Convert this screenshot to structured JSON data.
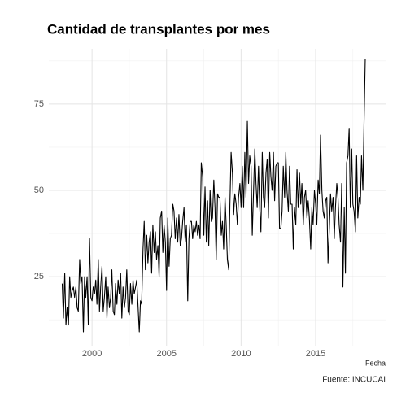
{
  "chart_data": {
    "type": "line",
    "title": "Cantidad de transplantes por mes",
    "xlabel": "Fecha",
    "caption": "Fuente: INCUCAI",
    "color": "#000000",
    "grid": true,
    "xlim": [
      1997.1,
      2019.75
    ],
    "xticks": [
      2000,
      2005,
      2010,
      2015
    ],
    "ylim": [
      5,
      91
    ],
    "yticks": [
      25,
      50,
      75
    ],
    "x": [
      1998,
      1998.08,
      1998.17,
      1998.25,
      1998.33,
      1998.42,
      1998.5,
      1998.58,
      1998.67,
      1998.75,
      1998.83,
      1998.92,
      1999,
      1999.08,
      1999.17,
      1999.25,
      1999.33,
      1999.42,
      1999.5,
      1999.58,
      1999.67,
      1999.75,
      1999.83,
      1999.92,
      2000,
      2000.08,
      2000.17,
      2000.25,
      2000.33,
      2000.42,
      2000.5,
      2000.58,
      2000.67,
      2000.75,
      2000.83,
      2000.92,
      2001,
      2001.08,
      2001.17,
      2001.25,
      2001.33,
      2001.42,
      2001.5,
      2001.58,
      2001.67,
      2001.75,
      2001.83,
      2001.92,
      2002,
      2002.08,
      2002.17,
      2002.25,
      2002.33,
      2002.42,
      2002.5,
      2002.58,
      2002.67,
      2002.75,
      2002.83,
      2002.92,
      2003,
      2003.08,
      2003.17,
      2003.25,
      2003.33,
      2003.42,
      2003.5,
      2003.58,
      2003.67,
      2003.75,
      2003.83,
      2003.92,
      2004,
      2004.08,
      2004.17,
      2004.25,
      2004.33,
      2004.42,
      2004.5,
      2004.58,
      2004.67,
      2004.75,
      2004.83,
      2004.92,
      2005,
      2005.08,
      2005.17,
      2005.25,
      2005.33,
      2005.42,
      2005.5,
      2005.58,
      2005.67,
      2005.75,
      2005.83,
      2005.92,
      2006,
      2006.08,
      2006.17,
      2006.25,
      2006.33,
      2006.42,
      2006.5,
      2006.58,
      2006.67,
      2006.75,
      2006.83,
      2006.92,
      2007,
      2007.08,
      2007.17,
      2007.25,
      2007.33,
      2007.42,
      2007.5,
      2007.58,
      2007.67,
      2007.75,
      2007.83,
      2007.92,
      2008,
      2008.08,
      2008.17,
      2008.25,
      2008.33,
      2008.42,
      2008.5,
      2008.58,
      2008.67,
      2008.75,
      2008.83,
      2008.92,
      2009,
      2009.08,
      2009.17,
      2009.25,
      2009.33,
      2009.42,
      2009.5,
      2009.58,
      2009.67,
      2009.75,
      2009.83,
      2009.92,
      2010,
      2010.08,
      2010.17,
      2010.25,
      2010.33,
      2010.42,
      2010.5,
      2010.58,
      2010.67,
      2010.75,
      2010.83,
      2010.92,
      2011,
      2011.08,
      2011.17,
      2011.25,
      2011.33,
      2011.42,
      2011.5,
      2011.58,
      2011.67,
      2011.75,
      2011.83,
      2011.92,
      2012,
      2012.08,
      2012.17,
      2012.25,
      2012.33,
      2012.42,
      2012.5,
      2012.58,
      2012.67,
      2012.75,
      2012.83,
      2012.92,
      2013,
      2013.08,
      2013.17,
      2013.25,
      2013.33,
      2013.42,
      2013.5,
      2013.58,
      2013.67,
      2013.75,
      2013.83,
      2013.92,
      2014,
      2014.08,
      2014.17,
      2014.25,
      2014.33,
      2014.42,
      2014.5,
      2014.58,
      2014.67,
      2014.75,
      2014.83,
      2014.92,
      2015,
      2015.08,
      2015.17,
      2015.25,
      2015.33,
      2015.42,
      2015.5,
      2015.58,
      2015.67,
      2015.75,
      2015.83,
      2015.92,
      2016,
      2016.08,
      2016.17,
      2016.25,
      2016.33,
      2016.42,
      2016.5,
      2016.58,
      2016.67,
      2016.75,
      2016.83,
      2016.92,
      2017,
      2017.08,
      2017.17,
      2017.25,
      2017.33,
      2017.42,
      2017.5,
      2017.58,
      2017.67,
      2017.75,
      2017.83,
      2017.92,
      2018,
      2018.08,
      2018.17,
      2018.25,
      2018.33
    ],
    "values": [
      23,
      13,
      26,
      11,
      16,
      11,
      25,
      19,
      21,
      22,
      19,
      22,
      16,
      15,
      30,
      23,
      25,
      9,
      25,
      19,
      25,
      11,
      36,
      19,
      18,
      22,
      20,
      24,
      17,
      30,
      15,
      22,
      28,
      15,
      19,
      25,
      13,
      22,
      16,
      19,
      27,
      15,
      14,
      23,
      17,
      24,
      20,
      26,
      13,
      22,
      16,
      19,
      27,
      15,
      14,
      23,
      17,
      24,
      20,
      22,
      24,
      17,
      9,
      18,
      17,
      33,
      41,
      27,
      37,
      29,
      35,
      38,
      26,
      40,
      32,
      38,
      30,
      34,
      25,
      42,
      44,
      32,
      40,
      35,
      21,
      42,
      28,
      36,
      37,
      46,
      44,
      36,
      42,
      35,
      43,
      34,
      36,
      41,
      45,
      35,
      40,
      18,
      36,
      41,
      41,
      36,
      40,
      38,
      41,
      37,
      40,
      36,
      58,
      54,
      37,
      51,
      35,
      47,
      34,
      50,
      41,
      42,
      53,
      45,
      30,
      49,
      48,
      48,
      37,
      41,
      33,
      48,
      40,
      30,
      27,
      46,
      61,
      55,
      43,
      49,
      46,
      40,
      48,
      52,
      45,
      57,
      45,
      61,
      48,
      70,
      52,
      60,
      57,
      37,
      49,
      62,
      52,
      45,
      57,
      45,
      38,
      61,
      48,
      45,
      55,
      59,
      42,
      61,
      54,
      50,
      61,
      47,
      57,
      58,
      58,
      39,
      39,
      44,
      57,
      48,
      61,
      50,
      44,
      57,
      46,
      46,
      33,
      45,
      40,
      56,
      45,
      55,
      46,
      52,
      40,
      48,
      50,
      42,
      47,
      42,
      33,
      45,
      40,
      50,
      46,
      40,
      53,
      49,
      66,
      50,
      44,
      42,
      47,
      48,
      29,
      39,
      49,
      44,
      48,
      36,
      45,
      52,
      48,
      40,
      35,
      52,
      22,
      45,
      26,
      58,
      60,
      68,
      45,
      62,
      46,
      44,
      38,
      60,
      42,
      48,
      46,
      60,
      50,
      70,
      88
    ]
  }
}
